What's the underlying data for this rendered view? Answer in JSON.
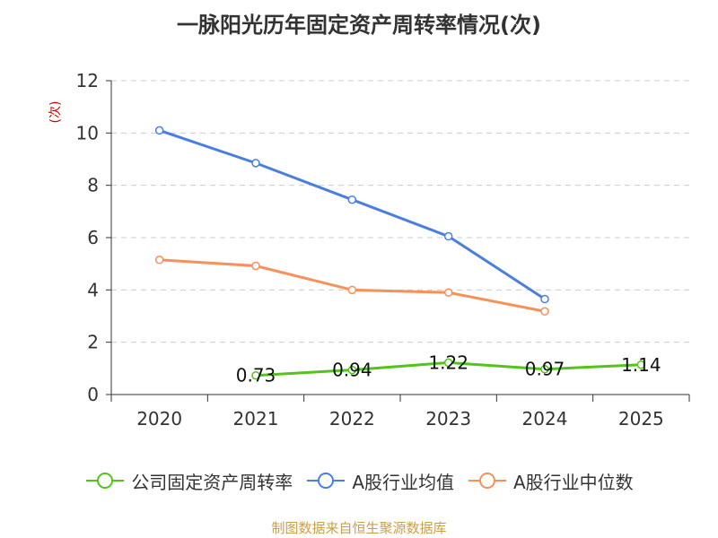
{
  "chart_data": {
    "type": "line",
    "title": "一脉阳光历年固定资产周转率情况(次)",
    "ylabel": "(次)",
    "xlabel": "",
    "categories": [
      "2020",
      "2021",
      "2022",
      "2023",
      "2024",
      "2025"
    ],
    "ylim": [
      0,
      12
    ],
    "yticks": [
      0,
      2,
      4,
      6,
      8,
      10,
      12
    ],
    "grid": true,
    "series": [
      {
        "name": "公司固定资产周转率",
        "color": "#52c41a",
        "values": [
          null,
          0.73,
          0.94,
          1.22,
          0.97,
          1.14
        ],
        "labels": [
          "",
          "0.73",
          "0.94",
          "1.22",
          "0.97",
          "1.14"
        ]
      },
      {
        "name": "A股行业均值",
        "color": "#4a7fe0",
        "values": [
          10.1,
          8.85,
          7.45,
          6.05,
          3.65,
          null
        ]
      },
      {
        "name": "A股行业中位数",
        "color": "#f79059",
        "values": [
          5.15,
          4.92,
          4.0,
          3.9,
          3.18,
          null
        ]
      }
    ],
    "legend_position": "bottom",
    "source": "制图数据来自恒生聚源数据库"
  }
}
